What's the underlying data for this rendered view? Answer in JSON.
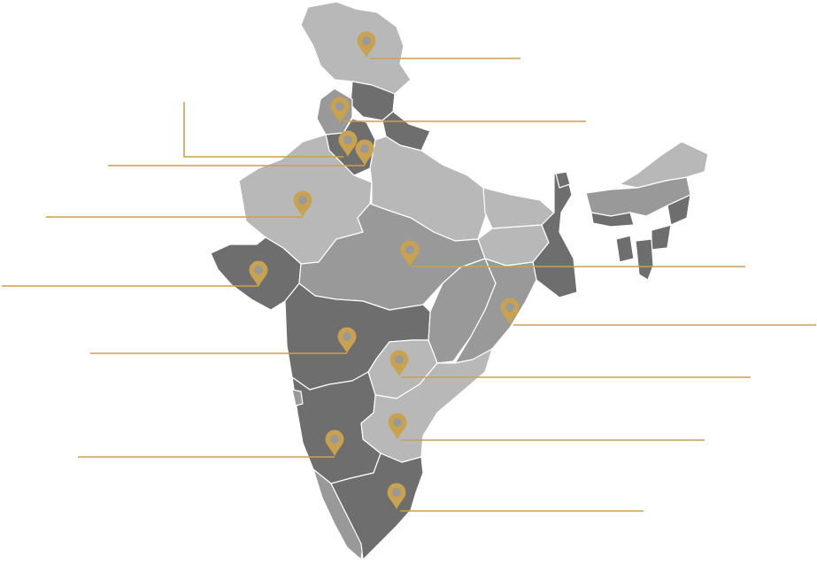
{
  "map": {
    "colors": {
      "light": "#b8b8b8",
      "mid": "#999999",
      "dark": "#6e6e6e",
      "border": "#ffffff",
      "marker": "#c9a24f",
      "leader": "#c9a24f"
    },
    "markers": [
      {
        "id": "jammu-kashmir"
      },
      {
        "id": "punjab"
      },
      {
        "id": "haryana"
      },
      {
        "id": "delhi"
      },
      {
        "id": "rajasthan"
      },
      {
        "id": "gujarat"
      },
      {
        "id": "madhya-pradesh"
      },
      {
        "id": "maharashtra"
      },
      {
        "id": "odisha"
      },
      {
        "id": "telangana"
      },
      {
        "id": "andhra-pradesh"
      },
      {
        "id": "karnataka"
      },
      {
        "id": "tamil-nadu"
      }
    ]
  }
}
